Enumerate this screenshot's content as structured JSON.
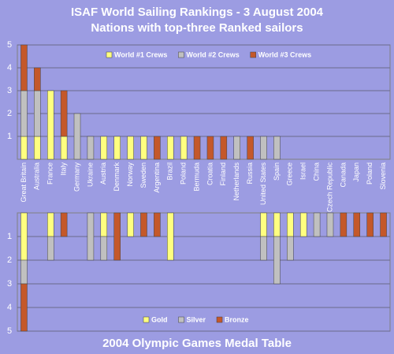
{
  "chart_data": [
    {
      "type": "bar",
      "stacked": true,
      "title": "ISAF World Sailing Rankings - 3 August 2004",
      "subtitle": "Nations with top-three Ranked sailors",
      "categories": [
        "Great Britain",
        "Australia",
        "France",
        "Italy",
        "Germany",
        "Ukraine",
        "Austria",
        "Denmark",
        "Norway",
        "Sweden",
        "Argentina",
        "Brazil",
        "Poland",
        "Bermuda",
        "Croatia",
        "Finland",
        "Netherlands",
        "Russia",
        "United States",
        "Spain",
        "Greece",
        "Israel",
        "China",
        "Czech Republic",
        "Canada",
        "Japan",
        "Poland",
        "Slovenia"
      ],
      "series": [
        {
          "name": "World #1 Crews",
          "color": "#ffff80",
          "values": [
            1,
            1,
            3,
            1,
            0,
            0,
            1,
            1,
            1,
            1,
            0,
            1,
            1,
            0,
            0,
            0,
            0,
            0,
            0,
            0,
            0,
            0,
            0,
            0,
            0,
            0,
            0,
            0
          ]
        },
        {
          "name": "World #2 Crews",
          "color": "#c0c0c0",
          "values": [
            2,
            2,
            0,
            0,
            2,
            1,
            0,
            0,
            0,
            0,
            0,
            0,
            0,
            0,
            0,
            0,
            1,
            0,
            1,
            1,
            0,
            0,
            0,
            0,
            0,
            0,
            0,
            0
          ]
        },
        {
          "name": "World #3 Crews",
          "color": "#c4582a",
          "values": [
            2,
            1,
            0,
            2,
            0,
            0,
            0,
            0,
            0,
            0,
            1,
            0,
            0,
            1,
            1,
            1,
            0,
            1,
            0,
            0,
            0,
            0,
            0,
            0,
            0,
            0,
            0,
            0
          ]
        }
      ],
      "ylim": [
        0,
        5
      ],
      "yticks": [
        1,
        2,
        3,
        4,
        5
      ],
      "grid": true,
      "legend": "top-right"
    },
    {
      "type": "bar",
      "stacked": true,
      "invert_y": true,
      "title": "2004 Olympic Games Medal Table",
      "series": [
        {
          "name": "Gold",
          "color": "#ffff80",
          "values": [
            2,
            0,
            1,
            0,
            0,
            0,
            1,
            0,
            1,
            0,
            0,
            2,
            0,
            0,
            0,
            0,
            0,
            0,
            1,
            1,
            1,
            1,
            0,
            0,
            0,
            0,
            0,
            0
          ]
        },
        {
          "name": "Silver",
          "color": "#c0c0c0",
          "values": [
            1,
            0,
            1,
            0,
            0,
            2,
            1,
            0,
            0,
            0,
            0,
            0,
            0,
            0,
            0,
            0,
            0,
            0,
            1,
            2,
            1,
            0,
            1,
            1,
            0,
            0,
            0,
            0
          ]
        },
        {
          "name": "Bronze",
          "color": "#c4582a",
          "values": [
            2,
            0,
            0,
            1,
            0,
            0,
            0,
            2,
            0,
            1,
            1,
            0,
            0,
            0,
            0,
            0,
            0,
            0,
            0,
            0,
            0,
            0,
            0,
            0,
            1,
            1,
            1,
            1
          ]
        }
      ],
      "ylim": [
        0,
        5
      ],
      "yticks": [
        1,
        2,
        3,
        4,
        5
      ],
      "grid": true,
      "legend": "bottom"
    }
  ]
}
